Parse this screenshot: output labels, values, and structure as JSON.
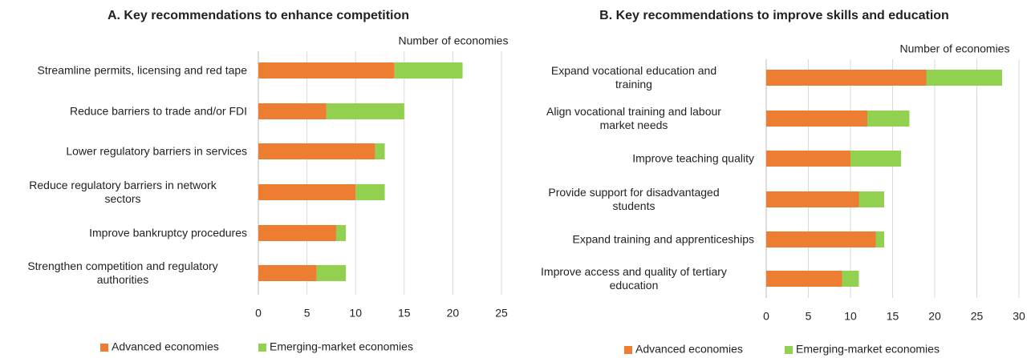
{
  "chart_data": [
    {
      "type": "bar",
      "orientation": "horizontal",
      "stacked": true,
      "title": "A. Key recommendations to enhance competition",
      "xlabel": "Number of economies",
      "categories": [
        "Streamline permits, licensing and red tape",
        "Reduce barriers to trade and/or FDI",
        "Lower regulatory barriers in services",
        "Reduce regulatory barriers in network\nsectors",
        "Improve bankruptcy procedures",
        "Strengthen competition and regulatory\nauthorities"
      ],
      "series": [
        {
          "name": "Advanced economies",
          "color": "#ed7d31",
          "values": [
            14,
            7,
            12,
            10,
            8,
            6
          ]
        },
        {
          "name": "Emerging-market economies",
          "color": "#92d050",
          "values": [
            7,
            8,
            1,
            3,
            1,
            3
          ]
        }
      ],
      "xlim": [
        0,
        25
      ],
      "xticks": [
        0,
        5,
        10,
        15,
        20,
        25
      ],
      "grid": true,
      "legend": "bottom"
    },
    {
      "type": "bar",
      "orientation": "horizontal",
      "stacked": true,
      "title": "B. Key recommendations to improve skills and education",
      "xlabel": "Number of economies",
      "categories": [
        "Expand vocational education and\ntraining",
        "Align vocational training and labour\nmarket needs",
        "Improve teaching quality",
        "Provide support for disadvantaged\nstudents",
        "Expand training and apprenticeships",
        "Improve access and quality of tertiary\neducation"
      ],
      "series": [
        {
          "name": "Advanced economies",
          "color": "#ed7d31",
          "values": [
            19,
            12,
            10,
            11,
            13,
            9
          ]
        },
        {
          "name": "Emerging-market economies",
          "color": "#92d050",
          "values": [
            9,
            5,
            6,
            3,
            1,
            2
          ]
        }
      ],
      "xlim": [
        0,
        30
      ],
      "xticks": [
        0,
        5,
        10,
        15,
        20,
        25,
        30
      ],
      "grid": true,
      "legend": "bottom"
    }
  ]
}
